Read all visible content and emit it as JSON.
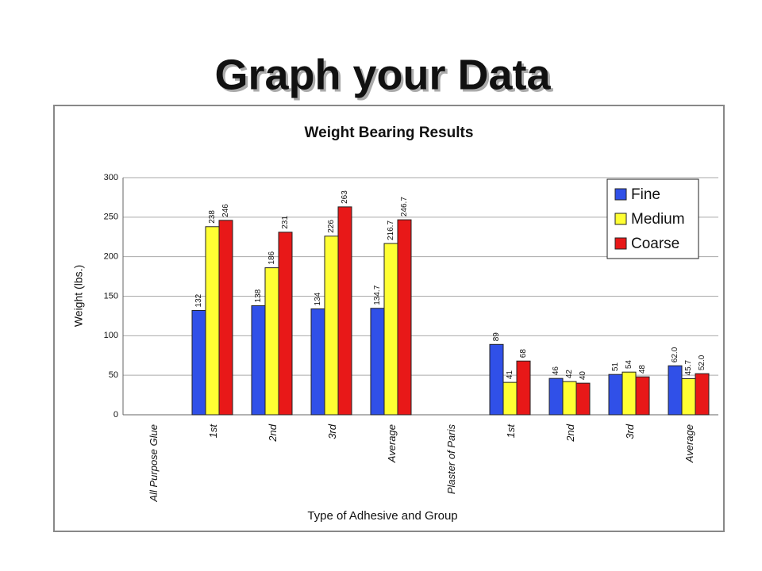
{
  "slide_title": "Graph your Data",
  "chart_data": {
    "type": "bar",
    "title": "Weight Bearing Results",
    "x_label": "Type of Adhesive and Group",
    "y_label": "Weight (lbs.)",
    "categories": [
      "All Purpose Glue",
      "1st",
      "2nd",
      "3rd",
      "Average",
      "Plaster of Paris",
      "1st",
      "2nd",
      "3rd",
      "Average"
    ],
    "series": [
      {
        "name": "Fine",
        "color": "#3050e8",
        "values": [
          null,
          132,
          138,
          134,
          134.7,
          null,
          89,
          46,
          51,
          62
        ],
        "value_labels": [
          null,
          "132",
          "138",
          "134",
          "134.7",
          null,
          "89",
          "46",
          "51",
          "62.0"
        ]
      },
      {
        "name": "Medium",
        "color": "#ffff33",
        "values": [
          null,
          238,
          186,
          226,
          216.7,
          null,
          41,
          42,
          54,
          45.7
        ],
        "value_labels": [
          null,
          "238",
          "186",
          "226",
          "216.7",
          null,
          "41",
          "42",
          "54",
          "45.7"
        ]
      },
      {
        "name": "Coarse",
        "color": "#e81818",
        "values": [
          null,
          246,
          231,
          263,
          246.7,
          null,
          68,
          40,
          48,
          52
        ],
        "value_labels": [
          null,
          "246",
          "231",
          "263",
          "246.7",
          null,
          "68",
          "40",
          "48",
          "52.0"
        ]
      }
    ],
    "ylim": [
      0,
      300
    ],
    "yticks": [
      0,
      50,
      100,
      150,
      200,
      250,
      300
    ],
    "grid": true,
    "legend": "top-right"
  }
}
